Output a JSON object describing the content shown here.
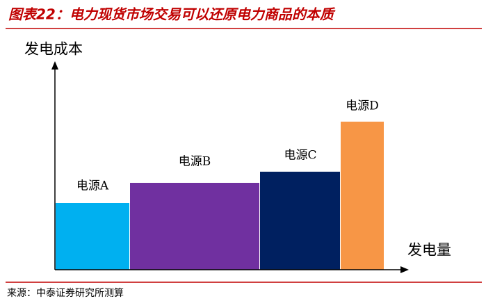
{
  "header": {
    "title": "图表22：电力现货市场交易可以还原电力商品的本质"
  },
  "axes": {
    "y_label": "发电成本",
    "x_label": "发电量"
  },
  "blocks": [
    {
      "label": "电源A"
    },
    {
      "label": "电源B"
    },
    {
      "label": "电源C"
    },
    {
      "label": "电源D"
    }
  ],
  "footer": {
    "source": "来源：中泰证券研究所测算"
  }
}
